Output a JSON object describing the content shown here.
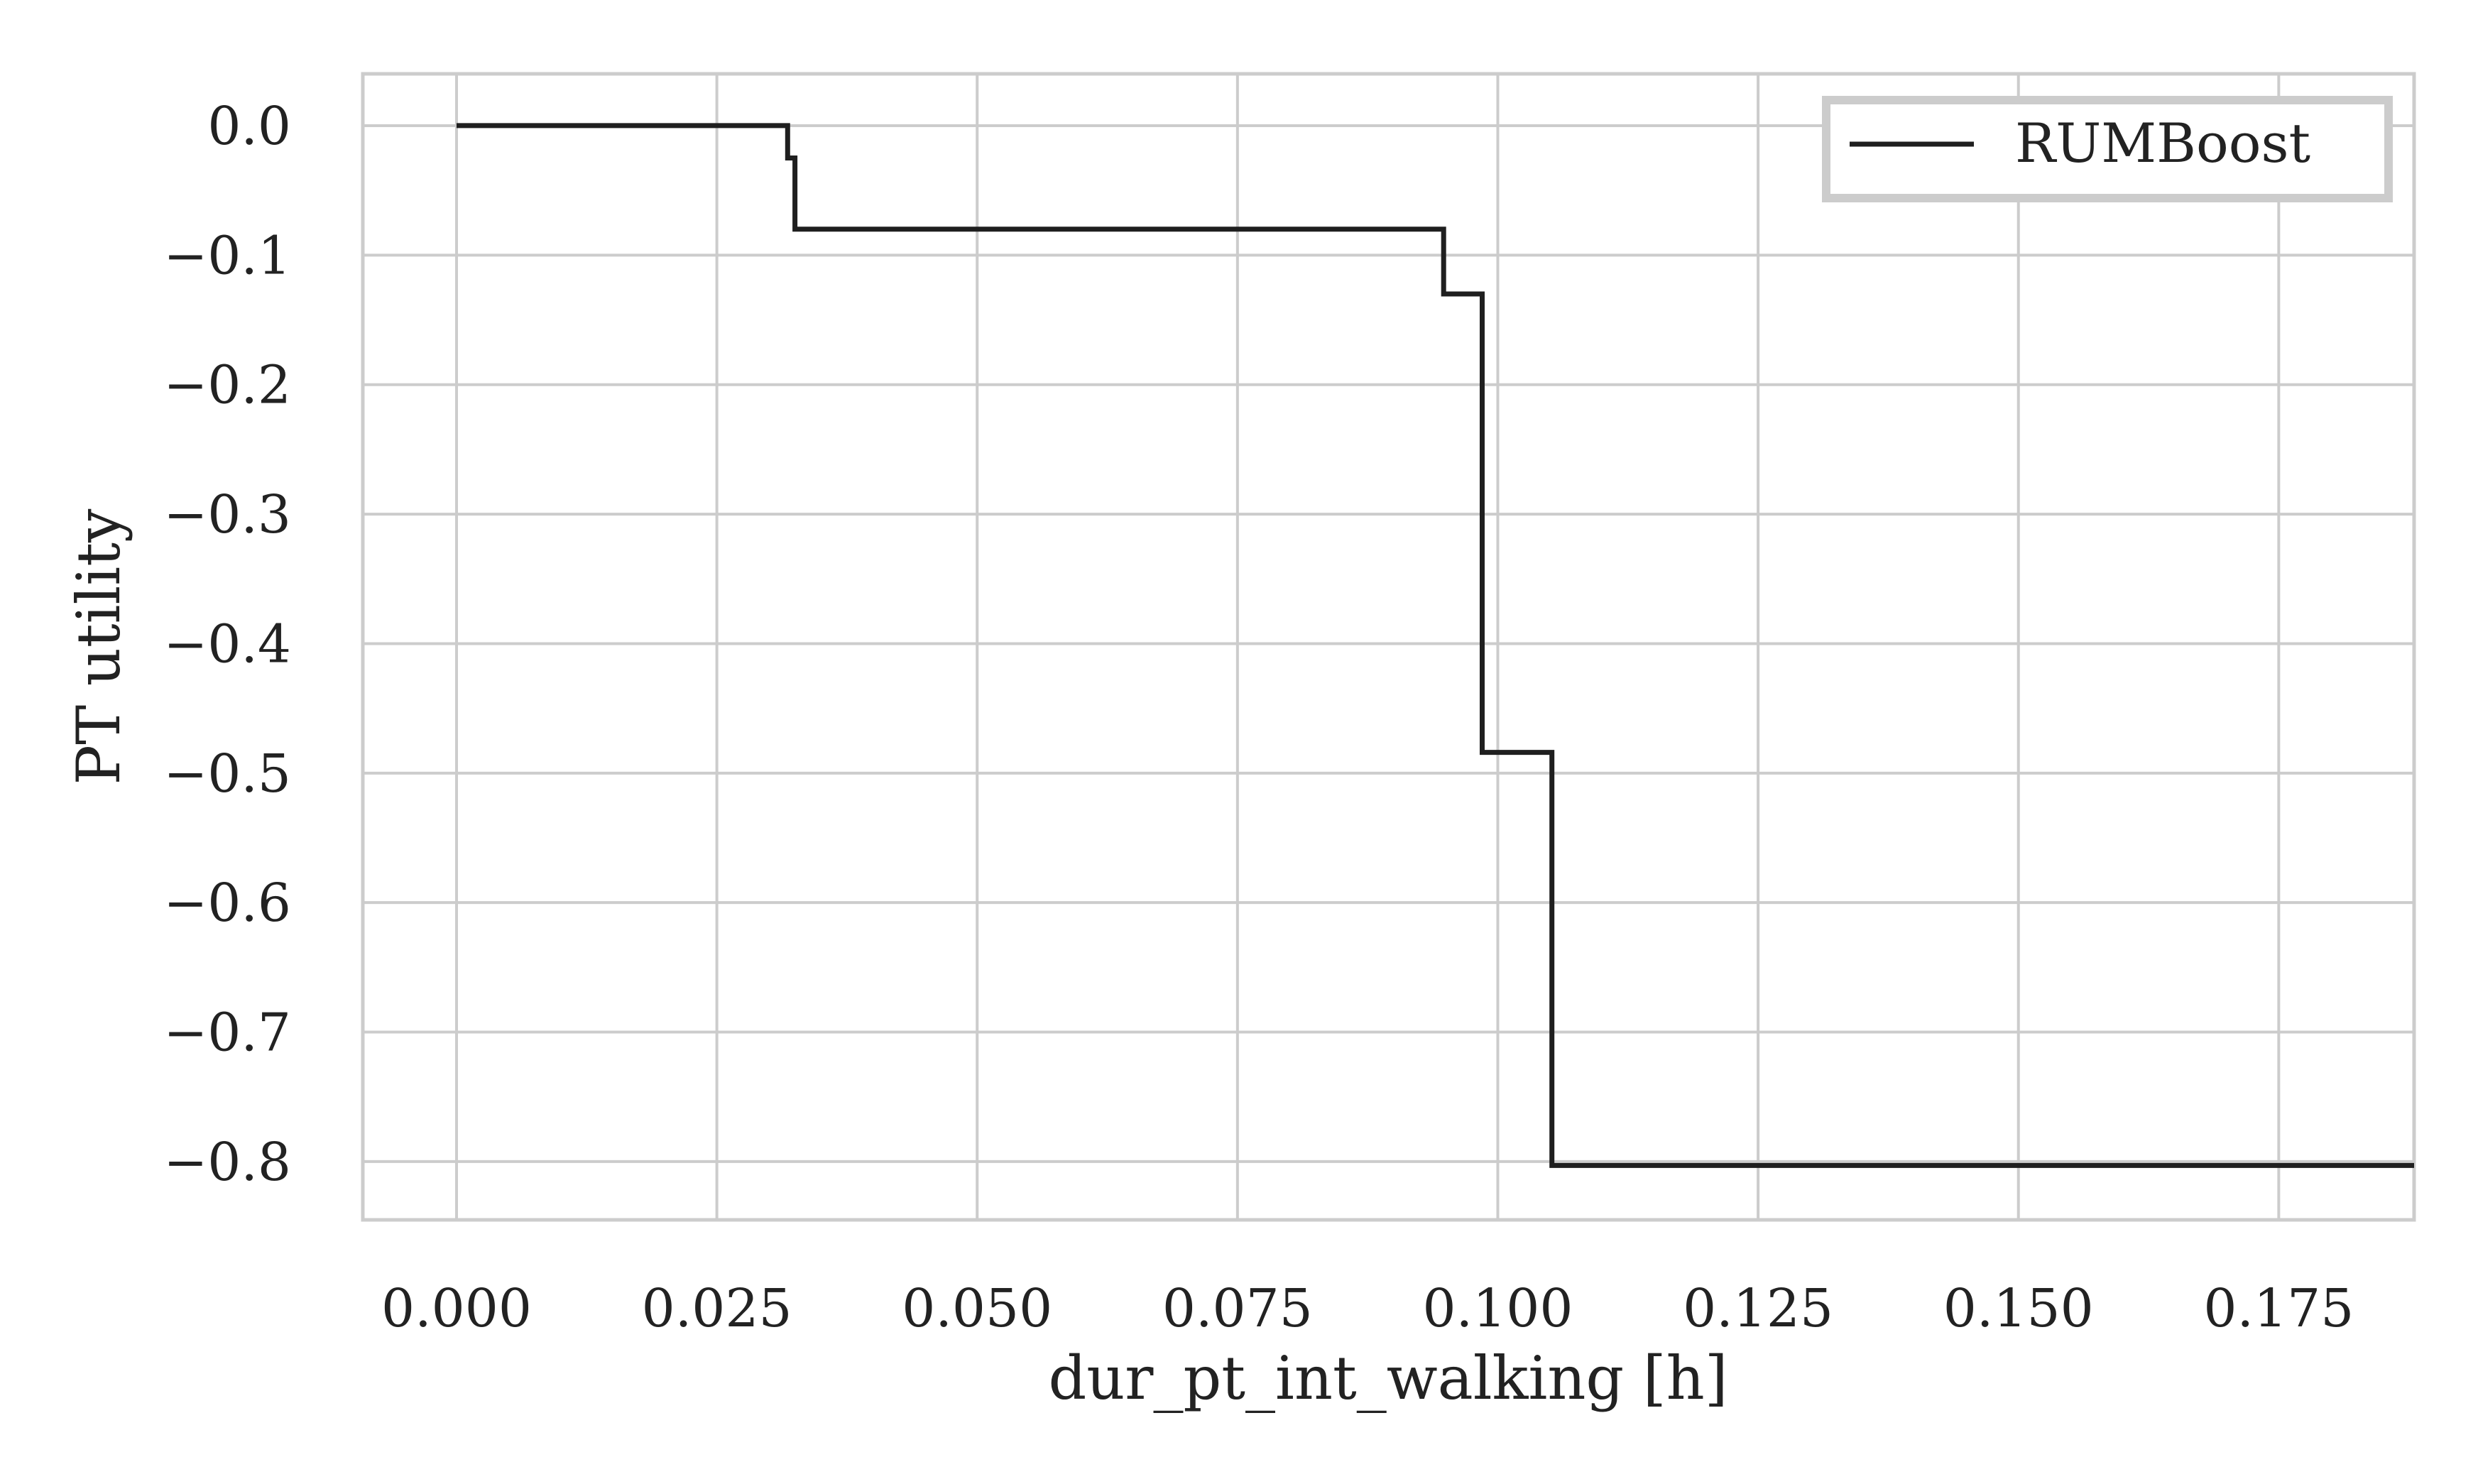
{
  "chart_data": {
    "type": "line",
    "title": "",
    "xlabel": "dur_pt_int_walking [h]",
    "ylabel": "PT utility",
    "xlim": [
      -0.009,
      0.188
    ],
    "ylim": [
      -0.845,
      0.04
    ],
    "xticks": [
      0.0,
      0.025,
      0.05,
      0.075,
      0.1,
      0.125,
      0.15,
      0.175
    ],
    "xtick_labels": [
      "0.000",
      "0.025",
      "0.050",
      "0.075",
      "0.100",
      "0.125",
      "0.150",
      "0.175"
    ],
    "yticks": [
      0.0,
      -0.1,
      -0.2,
      -0.3,
      -0.4,
      -0.5,
      -0.6,
      -0.7,
      -0.8
    ],
    "ytick_labels": [
      "0.0",
      "−0.1",
      "−0.2",
      "−0.3",
      "−0.4",
      "−0.5",
      "−0.6",
      "−0.7",
      "−0.8"
    ],
    "grid": true,
    "legend_position": "top-right",
    "series": [
      {
        "name": "RUMBoost",
        "color": "#1f1f1f",
        "step": true,
        "x": [
          0.0,
          0.0318,
          0.0318,
          0.0325,
          0.0325,
          0.0948,
          0.0948,
          0.0985,
          0.0985,
          0.1052,
          0.1052,
          0.188
        ],
        "y": [
          0.0,
          0.0,
          -0.025,
          -0.025,
          -0.08,
          -0.08,
          -0.13,
          -0.13,
          -0.484,
          -0.484,
          -0.803,
          -0.803
        ]
      }
    ]
  }
}
